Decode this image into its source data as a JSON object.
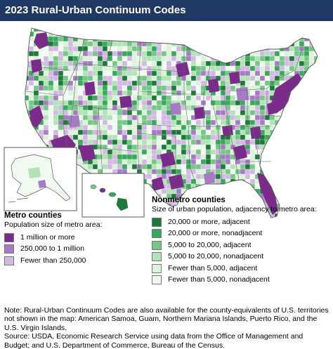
{
  "title": "2023 Rural-Urban Continuum Codes",
  "colors": {
    "title_bar": "#1f3864",
    "metro_1m": "#7b2c8a",
    "metro_250k": "#a77bc4",
    "metro_small": "#d4b8e4",
    "nonmetro_20k_adj": "#1b7a38",
    "nonmetro_20k_nonadj": "#38a95a",
    "nonmetro_5k_adj": "#74c785",
    "nonmetro_5k_nonadj": "#b2e2b6",
    "nonmetro_lt5k_adj": "#dcf2dc",
    "nonmetro_lt5k_nonadj": "#f1faf0",
    "state_border": "#666666"
  },
  "legend_metro": {
    "heading": "Metro counties",
    "subheading": "Population size of metro area:",
    "items": [
      {
        "label": "1 million or more",
        "color": "#7b2c8a"
      },
      {
        "label": "250,000 to 1 million",
        "color": "#a77bc4"
      },
      {
        "label": "Fewer than 250,000",
        "color": "#d4b8e4"
      }
    ]
  },
  "legend_nonmetro": {
    "heading": "Nonmetro counties",
    "subheading": "Size of urban population, adjacency to metro area:",
    "items": [
      {
        "label": "20,000 or more, adjacent",
        "color": "#1b7a38"
      },
      {
        "label": "20,000 or more, nonadjacent",
        "color": "#38a95a"
      },
      {
        "label": "5,000 to 20,000, adjacent",
        "color": "#74c785"
      },
      {
        "label": "5,000 to 20,000, nonadjacent",
        "color": "#b2e2b6"
      },
      {
        "label": "Fewer than 5,000, adjacent",
        "color": "#dcf2dc"
      },
      {
        "label": "Fewer than 5,000, nonadjacent",
        "color": "#f1faf0"
      }
    ]
  },
  "footer": {
    "note": "Note: Rural-Urban Continuum Codes are also available for the county-equivalents of U.S. territories not shown in the map: American Samoa, Guam, Northern Mariana Islands, Puerto Rico, and the U.S. Virgin Islands.",
    "source": "Source: USDA, Economic Research Service using data from the Office of Management and Budget; and U.S. Department of Commerce, Bureau of the Census."
  }
}
